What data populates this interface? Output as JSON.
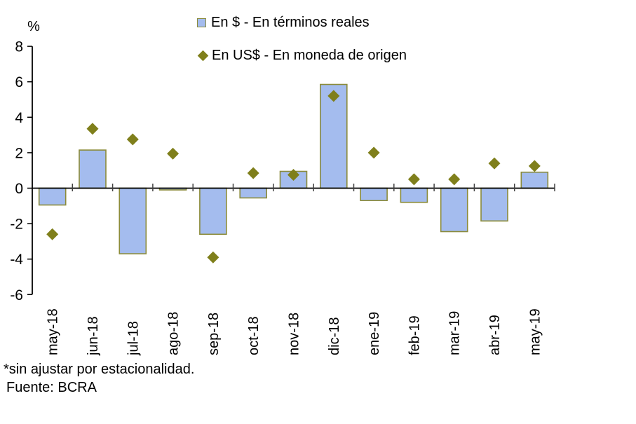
{
  "chart_data": {
    "type": "bar",
    "title": "",
    "ylabel": "%",
    "xlabel": "",
    "categories": [
      "may-18",
      "jun-18",
      "jul-18",
      "ago-18",
      "sep-18",
      "oct-18",
      "nov-18",
      "dic-18",
      "ene-19",
      "feb-19",
      "mar-19",
      "abr-19",
      "may-19"
    ],
    "series": [
      {
        "name": "En $ - En términos reales",
        "type": "bar",
        "color": "#a4bcee",
        "border_color": "#8b8b3a",
        "values": [
          -0.95,
          2.15,
          -3.7,
          -0.1,
          -2.6,
          -0.55,
          0.95,
          5.85,
          -0.7,
          -0.8,
          -2.45,
          -1.85,
          0.9
        ]
      },
      {
        "name": "En US$ - En moneda de origen",
        "type": "scatter",
        "marker": "diamond",
        "color": "#7f7f1b",
        "values": [
          -2.6,
          3.35,
          2.75,
          1.95,
          -3.9,
          0.85,
          0.75,
          5.2,
          2.0,
          0.5,
          0.5,
          1.4,
          1.25
        ]
      }
    ],
    "ylim": [
      -6,
      8
    ],
    "yticks": [
      8,
      6,
      4,
      2,
      0,
      -2,
      -4,
      -6
    ],
    "grid": false,
    "legend_position": "top-center",
    "axis_color": "#000000",
    "tick_color": "#404040"
  },
  "footer": {
    "note": "*sin ajustar por estacionalidad.",
    "source": "Fuente: BCRA"
  }
}
